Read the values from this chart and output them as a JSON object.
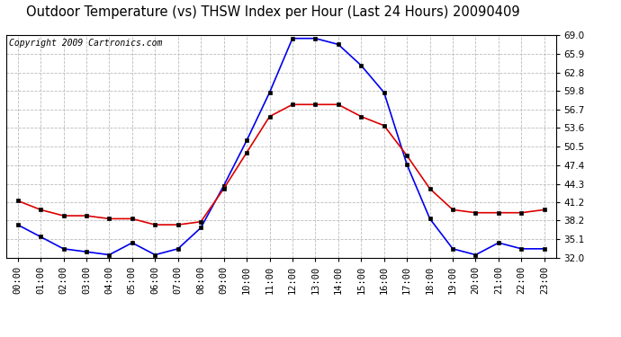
{
  "title": "Outdoor Temperature (vs) THSW Index per Hour (Last 24 Hours) 20090409",
  "copyright_text": "Copyright 2009 Cartronics.com",
  "hours": [
    0,
    1,
    2,
    3,
    4,
    5,
    6,
    7,
    8,
    9,
    10,
    11,
    12,
    13,
    14,
    15,
    16,
    17,
    18,
    19,
    20,
    21,
    22,
    23
  ],
  "x_labels": [
    "00:00",
    "01:00",
    "02:00",
    "03:00",
    "04:00",
    "05:00",
    "06:00",
    "07:00",
    "08:00",
    "09:00",
    "10:00",
    "11:00",
    "12:00",
    "13:00",
    "14:00",
    "15:00",
    "16:00",
    "17:00",
    "18:00",
    "19:00",
    "20:00",
    "21:00",
    "22:00",
    "23:00"
  ],
  "blue_data": [
    37.5,
    35.5,
    33.5,
    33.0,
    32.5,
    34.5,
    32.5,
    33.5,
    37.0,
    44.0,
    51.5,
    59.5,
    68.5,
    68.5,
    67.5,
    64.0,
    59.5,
    47.5,
    38.5,
    33.5,
    32.5,
    34.5,
    33.5,
    33.5
  ],
  "red_data": [
    41.5,
    40.0,
    39.0,
    39.0,
    38.5,
    38.5,
    37.5,
    37.5,
    38.0,
    43.5,
    49.5,
    55.5,
    57.5,
    57.5,
    57.5,
    55.5,
    54.0,
    49.0,
    43.5,
    40.0,
    39.5,
    39.5,
    39.5,
    40.0
  ],
  "blue_color": "#0000ee",
  "red_color": "#dd0000",
  "marker_color": "#000000",
  "background_color": "#ffffff",
  "grid_color": "#bbbbbb",
  "ylim": [
    32.0,
    69.0
  ],
  "yticks": [
    32.0,
    35.1,
    38.2,
    41.2,
    44.3,
    47.4,
    50.5,
    53.6,
    56.7,
    59.8,
    62.8,
    65.9,
    69.0
  ],
  "title_fontsize": 10.5,
  "copyright_fontsize": 7,
  "tick_fontsize": 7.5,
  "line_width": 1.2,
  "marker_size": 3.5
}
